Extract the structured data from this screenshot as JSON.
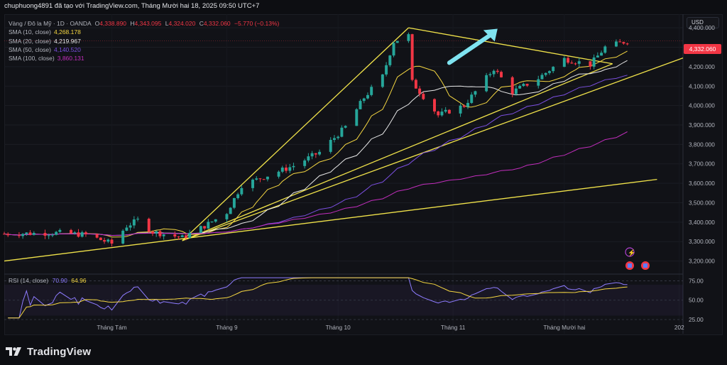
{
  "header": {
    "caption": "chuphuong4891 đã tạo với TradingView.com, Tháng Mười hai 18, 2025 09:50 UTC+7"
  },
  "legend": {
    "symbol": "Vàng / Đô la Mỹ · 1D · OANDA",
    "open_label": "O",
    "open": "4,338.890",
    "high_label": "H",
    "high": "4,343.095",
    "low_label": "L",
    "low": "4,324.020",
    "close_label": "C",
    "close": "4,332.060",
    "change": "−5.770 (−0.13%)",
    "sma": [
      {
        "label": "SMA (10, close)",
        "value": "4,268.178",
        "color": "#f5d742"
      },
      {
        "label": "SMA (20, close)",
        "value": "4,219.967",
        "color": "#e8e8e8"
      },
      {
        "label": "SMA (50, close)",
        "value": "4,140.520",
        "color": "#7b4fe0"
      },
      {
        "label": "SMA (100, close)",
        "value": "3,860.131",
        "color": "#c22ebd"
      }
    ]
  },
  "rsi": {
    "label": "RSI (14, close)",
    "value": "70.90",
    "signal": "64.96",
    "value_color": "#8e7cff",
    "signal_color": "#f5d742",
    "ticks": [
      "75.00",
      "50.00",
      "25.00"
    ]
  },
  "currency_button": "USD",
  "current_price": "4,332.060",
  "footer_brand": "TradingView",
  "colors": {
    "up": "#26a69a",
    "down": "#f23645",
    "trendline": "#f0e24a",
    "arrow": "#7fe3f0"
  },
  "chart_data": {
    "type": "candlestick",
    "title": "",
    "xlabel": "",
    "ylabel": "",
    "ylim": [
      3140,
      4470
    ],
    "y_ticks": [
      "4,400.000",
      "4,300.000",
      "4,200.000",
      "4,100.000",
      "4,000.000",
      "3,900.000",
      "3,800.000",
      "3,700.000",
      "3,600.000",
      "3,500.000",
      "3,400.000",
      "3,300.000",
      "3,200.000"
    ],
    "x_ticks": [
      "Tháng Tám",
      "Tháng 9",
      "Tháng 10",
      "Tháng 11",
      "Tháng Mười hai",
      "202"
    ],
    "x_range": [
      "2025-07-03",
      "2026-01-02"
    ],
    "series_close_approx": [
      [
        "2025-07-03",
        3340
      ],
      [
        "2025-07-18",
        3345
      ],
      [
        "2025-07-25",
        3335
      ],
      [
        "2025-08-01",
        3290
      ],
      [
        "2025-08-05",
        3380
      ],
      [
        "2025-08-08",
        3410
      ],
      [
        "2025-08-12",
        3350
      ],
      [
        "2025-08-20",
        3320
      ],
      [
        "2025-08-26",
        3380
      ],
      [
        "2025-09-01",
        3450
      ],
      [
        "2025-09-05",
        3590
      ],
      [
        "2025-09-12",
        3640
      ],
      [
        "2025-09-19",
        3690
      ],
      [
        "2025-09-26",
        3760
      ],
      [
        "2025-10-03",
        3890
      ],
      [
        "2025-10-08",
        4040
      ],
      [
        "2025-10-13",
        4150
      ],
      [
        "2025-10-16",
        4330
      ],
      [
        "2025-10-20",
        4360
      ],
      [
        "2025-10-21",
        4120
      ],
      [
        "2025-10-28",
        3950
      ],
      [
        "2025-11-04",
        4000
      ],
      [
        "2025-11-12",
        4190
      ],
      [
        "2025-11-17",
        4070
      ],
      [
        "2025-11-24",
        4140
      ],
      [
        "2025-12-01",
        4240
      ],
      [
        "2025-12-08",
        4210
      ],
      [
        "2025-12-12",
        4300
      ],
      [
        "2025-12-18",
        4332
      ]
    ],
    "sma_series": [
      {
        "name": "SMA (10, close)",
        "value": 4268.178
      },
      {
        "name": "SMA (20, close)",
        "value": 4219.967
      },
      {
        "name": "SMA (50, close)",
        "value": 4140.52
      },
      {
        "name": "SMA (100, close)",
        "value": 3860.131
      }
    ],
    "rsi": {
      "value": 70.9,
      "signal": 64.96,
      "ylim": [
        25,
        80
      ]
    }
  }
}
